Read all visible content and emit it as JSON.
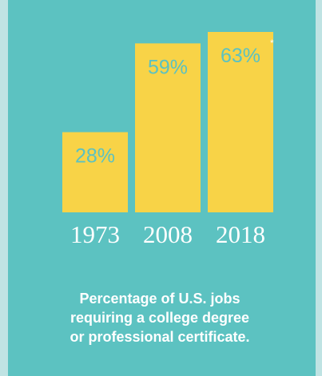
{
  "chart_data": {
    "type": "bar",
    "categories": [
      "1973",
      "2008",
      "2018"
    ],
    "values": [
      28,
      59,
      63
    ],
    "data_labels": [
      "28%",
      "59%",
      "63%"
    ],
    "annotations": [
      "*"
    ],
    "ylabel": "",
    "xlabel": "",
    "ylim": [
      0,
      63
    ],
    "grid": false,
    "legend": "none"
  },
  "caption": {
    "lines": [
      "Percentage of U.S. jobs",
      "requiring a college degree",
      "or professional certificate."
    ]
  },
  "colors": {
    "background": "#5cc2c1",
    "outer": "#bfe3e3",
    "bar": "#f8d347",
    "value_label": "#5cc2c1",
    "text": "#ffffff"
  }
}
